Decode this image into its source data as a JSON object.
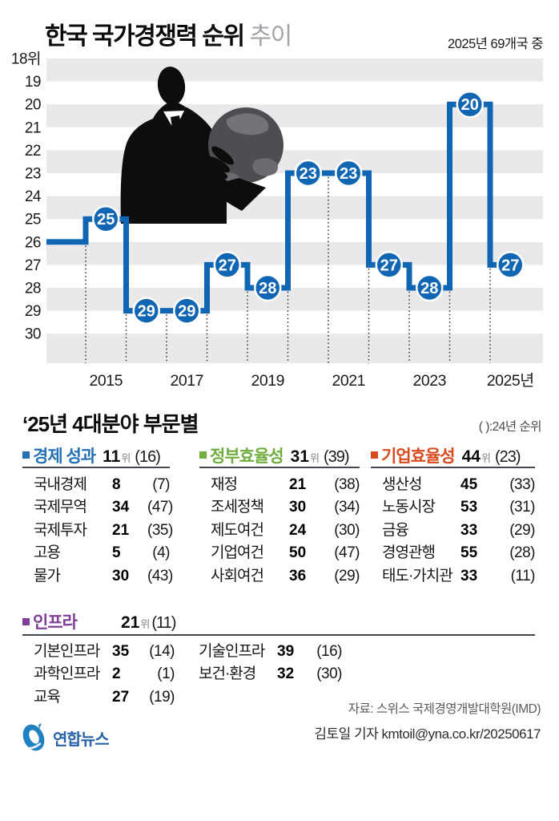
{
  "header": {
    "title_main": "한국 국가경쟁력 순위",
    "title_sub": "추이",
    "subtitle": "2025년 69개국 중"
  },
  "chart_data": {
    "type": "line",
    "step": true,
    "title": "한국 국가경쟁력 순위 추이",
    "x": [
      2014,
      2015,
      2016,
      2017,
      2018,
      2019,
      2020,
      2021,
      2022,
      2023,
      2024,
      2025
    ],
    "values": [
      26,
      25,
      29,
      29,
      27,
      28,
      23,
      23,
      27,
      28,
      20,
      27
    ],
    "x_ticks": [
      "2015",
      "2017",
      "2019",
      "2021",
      "2023",
      "2025년"
    ],
    "y_ticks": [
      "18위",
      "19",
      "20",
      "21",
      "22",
      "23",
      "24",
      "25",
      "26",
      "27",
      "28",
      "29",
      "30"
    ],
    "ylim": [
      18,
      31
    ],
    "y_reversed": true,
    "grid": "horizontal-bands",
    "line_color": "#1066b2",
    "band_color": "#e9e9ec",
    "labeled_points_start_year": 2015
  },
  "section": {
    "title": "‘25년 4대분야 부문별",
    "note": "( ):24년 순위"
  },
  "categories": [
    {
      "title": "경제 성과",
      "color": "#2470b4",
      "rank": "11",
      "rank_suffix": "위",
      "prev": "(16)",
      "rows": [
        {
          "label": "국내경제",
          "value": "8",
          "prev": "(7)"
        },
        {
          "label": "국제무역",
          "value": "34",
          "prev": "(47)"
        },
        {
          "label": "국제투자",
          "value": "21",
          "prev": "(35)"
        },
        {
          "label": "고용",
          "value": "5",
          "prev": "(4)"
        },
        {
          "label": "물가",
          "value": "30",
          "prev": "(43)"
        }
      ]
    },
    {
      "title": "정부효율성",
      "color": "#6fae3e",
      "rank": "31",
      "rank_suffix": "위",
      "prev": "(39)",
      "rows": [
        {
          "label": "재정",
          "value": "21",
          "prev": "(38)"
        },
        {
          "label": "조세정책",
          "value": "30",
          "prev": "(34)"
        },
        {
          "label": "제도여건",
          "value": "24",
          "prev": "(30)"
        },
        {
          "label": "기업여건",
          "value": "50",
          "prev": "(47)"
        },
        {
          "label": "사회여건",
          "value": "36",
          "prev": "(29)"
        }
      ]
    },
    {
      "title": "기업효율성",
      "color": "#d84b1e",
      "rank": "44",
      "rank_suffix": "위",
      "prev": "(23)",
      "rows": [
        {
          "label": "생산성",
          "value": "45",
          "prev": "(33)"
        },
        {
          "label": "노동시장",
          "value": "53",
          "prev": "(31)"
        },
        {
          "label": "금융",
          "value": "33",
          "prev": "(29)"
        },
        {
          "label": "경영관행",
          "value": "55",
          "prev": "(28)"
        },
        {
          "label": "태도·가치관",
          "value": "33",
          "prev": "(11)"
        }
      ]
    },
    {
      "title": "인프라",
      "color": "#7e3f97",
      "rank": "21",
      "rank_suffix": "위",
      "prev": "(11)",
      "rows_left": [
        {
          "label": "기본인프라",
          "value": "35",
          "prev": "(14)"
        },
        {
          "label": "과학인프라",
          "value": "2",
          "prev": "(1)"
        },
        {
          "label": "교육",
          "value": "27",
          "prev": "(19)"
        }
      ],
      "rows_right": [
        {
          "label": "기술인프라",
          "value": "39",
          "prev": "(16)"
        },
        {
          "label": "보건·환경",
          "value": "32",
          "prev": "(30)"
        }
      ]
    }
  ],
  "footer": {
    "source": "자료: 스위스 국제경영개발대학원(IMD)",
    "credit": "김토일 기자 kmtoil@yna.co.kr/20250617",
    "logo_text": "연합뉴스"
  }
}
